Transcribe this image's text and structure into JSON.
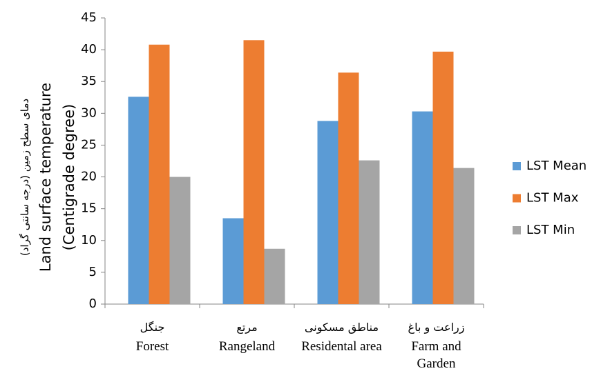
{
  "chart_data": {
    "type": "bar",
    "y_title_fa": "دمای سطح زمین (درجه سانتی گراد)",
    "y_title": "Land surface temperature (Centigrade degree)",
    "categories": [
      "Forest",
      "Rangeland",
      "Residental area",
      "Farm and Garden"
    ],
    "categories_fa": [
      "جنگل",
      "مرتع",
      "مناطق مسکونی",
      "زراعت و باغ"
    ],
    "series": [
      {
        "name": "LST Mean",
        "color": "#5b9bd5",
        "values": [
          32.6,
          13.5,
          28.8,
          30.3
        ]
      },
      {
        "name": "LST Max",
        "color": "#ed7d31",
        "values": [
          40.8,
          41.5,
          36.4,
          39.7
        ]
      },
      {
        "name": "LST Min",
        "color": "#a5a5a5",
        "values": [
          20.0,
          8.7,
          22.6,
          21.4
        ]
      }
    ],
    "ylim": [
      0,
      45
    ],
    "yticks": [
      0,
      5,
      10,
      15,
      20,
      25,
      30,
      35,
      40,
      45
    ],
    "legend": "right"
  }
}
